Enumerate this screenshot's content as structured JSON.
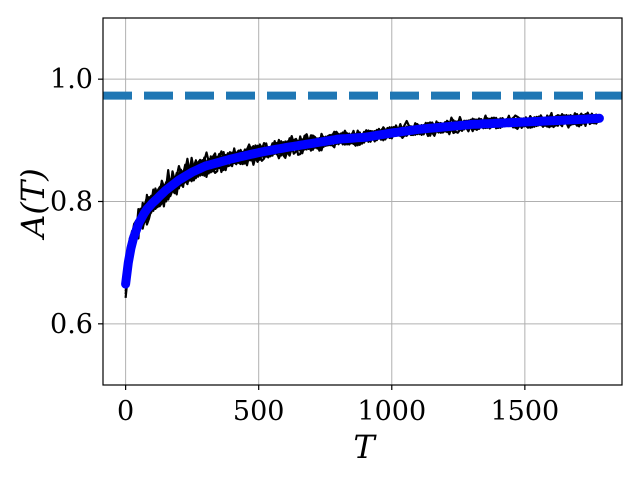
{
  "chart_data": {
    "type": "line",
    "xlabel": "T",
    "ylabel": "A(T)",
    "xlim": [
      -85,
      1865
    ],
    "ylim": [
      0.5,
      1.1
    ],
    "xticks": [
      0,
      500,
      1000,
      1500
    ],
    "xtick_labels": [
      "0",
      "500",
      "1000",
      "1500"
    ],
    "yticks": [
      0.6,
      0.8,
      1.0
    ],
    "ytick_labels": [
      "0.6",
      "0.8",
      "1.0"
    ],
    "grid": true,
    "reference_line": {
      "y": 0.973,
      "style": "dashed",
      "color": "#1f77b4"
    },
    "series": [
      {
        "role": "individual runs",
        "count": 20,
        "color": "#000000",
        "x_range": [
          0,
          1780
        ]
      },
      {
        "role": "mean",
        "color": "#0000ff",
        "x": [
          0,
          10,
          25,
          50,
          75,
          100,
          150,
          200,
          250,
          300,
          400,
          500,
          600,
          700,
          800,
          900,
          1000,
          1100,
          1200,
          1300,
          1400,
          1500,
          1600,
          1700,
          1780
        ],
        "y": [
          0.665,
          0.7,
          0.735,
          0.765,
          0.785,
          0.797,
          0.818,
          0.835,
          0.848,
          0.858,
          0.87,
          0.88,
          0.888,
          0.895,
          0.902,
          0.905,
          0.912,
          0.918,
          0.922,
          0.926,
          0.928,
          0.93,
          0.932,
          0.934,
          0.936
        ]
      }
    ]
  }
}
